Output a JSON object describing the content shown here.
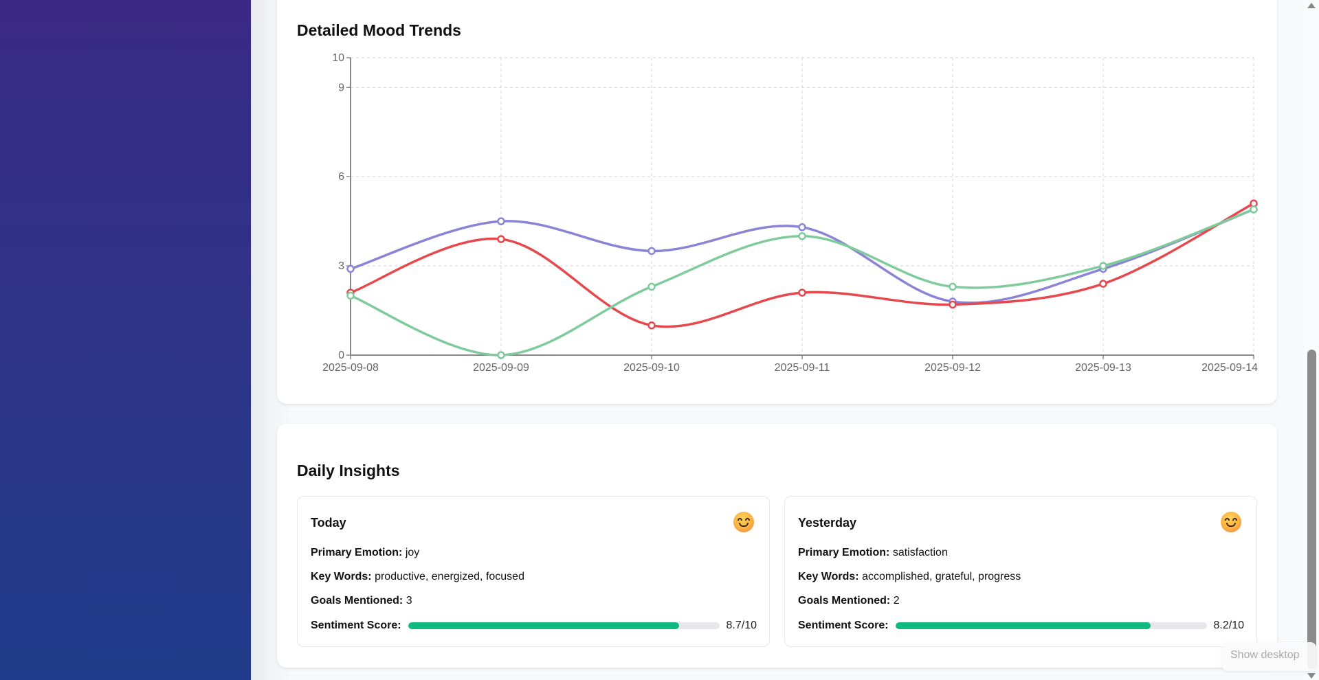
{
  "chart_section": {
    "title": "Detailed Mood Trends"
  },
  "chart_data": {
    "type": "line",
    "title": "Detailed Mood Trends",
    "xlabel": "",
    "ylabel": "",
    "x": [
      "2025-09-08",
      "2025-09-09",
      "2025-09-10",
      "2025-09-11",
      "2025-09-12",
      "2025-09-13",
      "2025-09-14"
    ],
    "yticks": [
      0,
      3,
      6,
      9,
      10
    ],
    "ylim": [
      0,
      10
    ],
    "grid": true,
    "curve": "smooth",
    "series": [
      {
        "name": "Series 1 (purple)",
        "color": "#8b83d6",
        "values": [
          2.9,
          4.5,
          3.5,
          4.3,
          1.8,
          2.9,
          4.9
        ]
      },
      {
        "name": "Series 2 (red)",
        "color": "#e5484d",
        "values": [
          2.1,
          3.9,
          1.0,
          2.1,
          1.7,
          2.4,
          5.1
        ]
      },
      {
        "name": "Series 3 (green)",
        "color": "#7fcb9b",
        "values": [
          2.0,
          0.0,
          2.3,
          4.0,
          2.3,
          3.0,
          4.9
        ]
      }
    ]
  },
  "insights": {
    "title": "Daily Insights",
    "cards": [
      {
        "day": "Today",
        "emoji": "smiling-face-icon",
        "primary_emotion_label": "Primary Emotion:",
        "primary_emotion": "joy",
        "key_words_label": "Key Words:",
        "key_words": "productive, energized, focused",
        "goals_label": "Goals Mentioned:",
        "goals": "3",
        "sentiment_label": "Sentiment Score:",
        "sentiment_value": 8.7,
        "sentiment_text": "8.7/10",
        "sentiment_color": "#10b981"
      },
      {
        "day": "Yesterday",
        "emoji": "smiling-face-icon",
        "primary_emotion_label": "Primary Emotion:",
        "primary_emotion": "satisfaction",
        "key_words_label": "Key Words:",
        "key_words": "accomplished, grateful, progress",
        "goals_label": "Goals Mentioned:",
        "goals": "2",
        "sentiment_label": "Sentiment Score:",
        "sentiment_value": 8.2,
        "sentiment_text": "8.2/10",
        "sentiment_color": "#10b981"
      }
    ]
  },
  "tooltip": {
    "text": "Show desktop"
  }
}
